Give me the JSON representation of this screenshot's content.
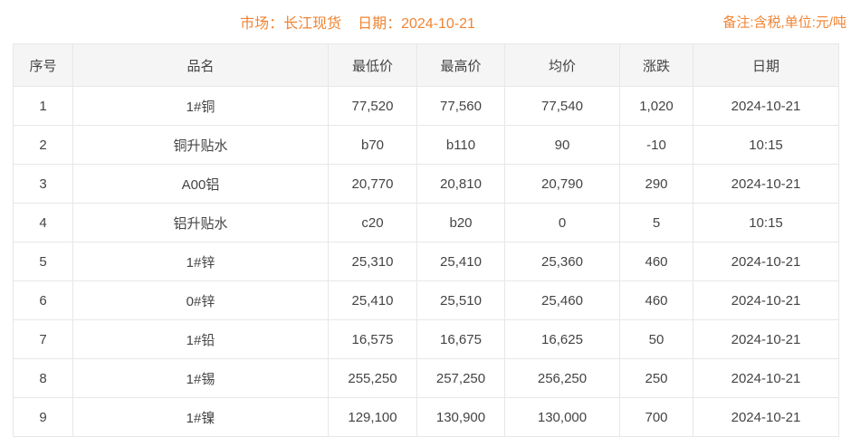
{
  "header": {
    "market_label": "市场：长江现货",
    "date_label": "日期：2024-10-21",
    "remark": "备注:含税,单位:元/吨"
  },
  "table": {
    "columns": [
      "序号",
      "品名",
      "最低价",
      "最高价",
      "均价",
      "涨跌",
      "日期"
    ],
    "rows": [
      {
        "no": "1",
        "name": "1#铜",
        "low": "77,520",
        "high": "77,560",
        "avg": "77,540",
        "change": "1,020",
        "change_dir": "up",
        "date": "2024-10-21"
      },
      {
        "no": "2",
        "name": "铜升贴水",
        "low": "b70",
        "high": "b110",
        "avg": "90",
        "change": "-10",
        "change_dir": "down",
        "date": "10:15"
      },
      {
        "no": "3",
        "name": "A00铝",
        "low": "20,770",
        "high": "20,810",
        "avg": "20,790",
        "change": "290",
        "change_dir": "up",
        "date": "2024-10-21"
      },
      {
        "no": "4",
        "name": "铝升贴水",
        "low": "c20",
        "high": "b20",
        "avg": "0",
        "change": "5",
        "change_dir": "up",
        "date": "10:15"
      },
      {
        "no": "5",
        "name": "1#锌",
        "low": "25,310",
        "high": "25,410",
        "avg": "25,360",
        "change": "460",
        "change_dir": "up",
        "date": "2024-10-21"
      },
      {
        "no": "6",
        "name": "0#锌",
        "low": "25,410",
        "high": "25,510",
        "avg": "25,460",
        "change": "460",
        "change_dir": "up",
        "date": "2024-10-21"
      },
      {
        "no": "7",
        "name": "1#铅",
        "low": "16,575",
        "high": "16,675",
        "avg": "16,625",
        "change": "50",
        "change_dir": "up",
        "date": "2024-10-21"
      },
      {
        "no": "8",
        "name": "1#锡",
        "low": "255,250",
        "high": "257,250",
        "avg": "256,250",
        "change": "250",
        "change_dir": "up",
        "date": "2024-10-21"
      },
      {
        "no": "9",
        "name": "1#镍",
        "low": "129,100",
        "high": "130,900",
        "avg": "130,000",
        "change": "700",
        "change_dir": "up",
        "date": "2024-10-21"
      }
    ]
  },
  "colors": {
    "accent_orange": "#f08433",
    "up_red": "#e03a3e",
    "down_green": "#2e9446"
  }
}
